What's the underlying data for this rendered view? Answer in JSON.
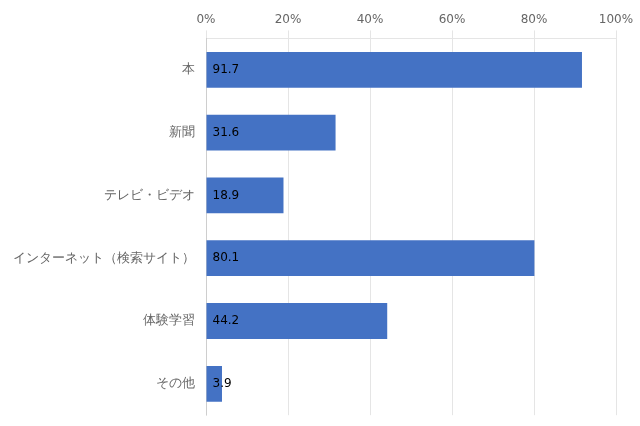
{
  "chart_data": {
    "type": "bar",
    "orientation": "horizontal",
    "categories": [
      "本",
      "新聞",
      "テレビ・ビデオ",
      "インターネット（検索サイト）",
      "体験学習",
      "その他"
    ],
    "values": [
      91.7,
      31.6,
      18.9,
      80.1,
      44.2,
      3.9
    ],
    "color": "#4472c4",
    "xlim": [
      0,
      100
    ],
    "xticks": [
      {
        "value": 0,
        "label": "0%"
      },
      {
        "value": 20,
        "label": "20%"
      },
      {
        "value": 40,
        "label": "40%"
      },
      {
        "value": 60,
        "label": "60%"
      },
      {
        "value": 80,
        "label": "80%"
      },
      {
        "value": 100,
        "label": "100%"
      }
    ],
    "grid": true,
    "data_labels": true
  }
}
